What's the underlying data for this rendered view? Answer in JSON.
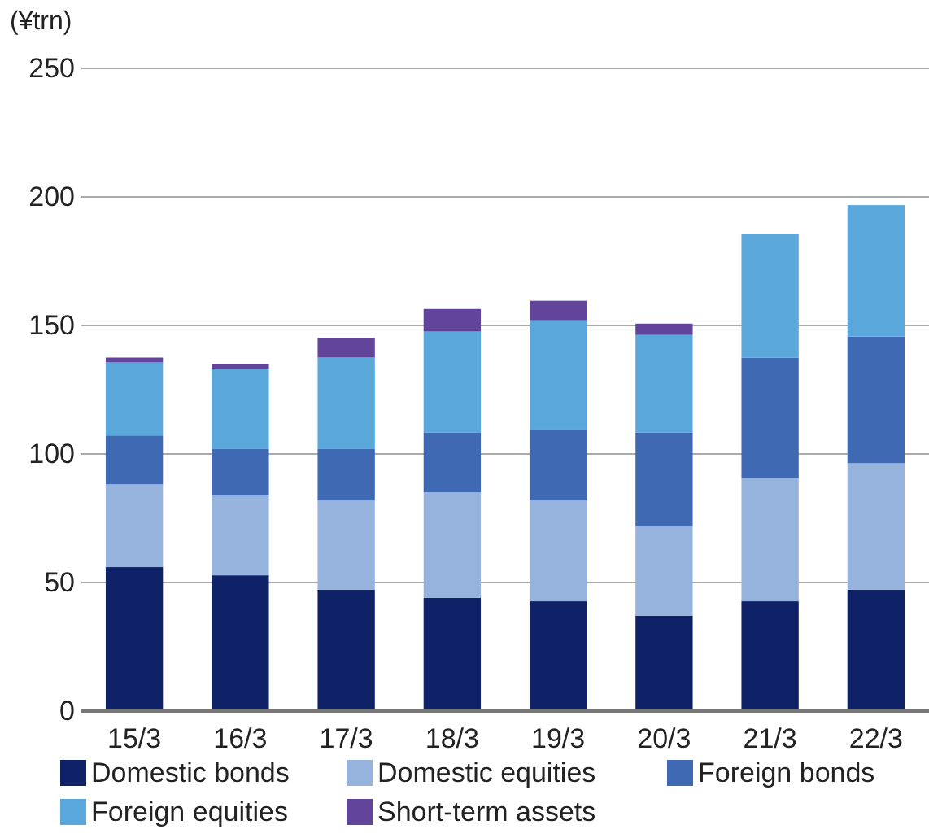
{
  "chart_data": {
    "type": "bar",
    "stacked": true,
    "ylabel": "(¥trn)",
    "categories": [
      "15/3",
      "16/3",
      "17/3",
      "18/3",
      "19/3",
      "20/3",
      "21/3",
      "22/3"
    ],
    "series": [
      {
        "name": "Domestic bonds",
        "color": "#0f2167",
        "values": [
          56,
          52.8,
          47.2,
          44,
          42.7,
          37.1,
          42.7,
          47.2
        ]
      },
      {
        "name": "Domestic equities",
        "color": "#95b3dc",
        "values": [
          32.2,
          31,
          34.7,
          41.1,
          39.2,
          34.7,
          48,
          49.2
        ]
      },
      {
        "name": "Foreign bonds",
        "color": "#3f69b2",
        "values": [
          19,
          18.3,
          20.2,
          23.3,
          27.8,
          36.6,
          46.8,
          49.3
        ]
      },
      {
        "name": "Foreign equities",
        "color": "#5aa7db",
        "values": [
          28.4,
          31,
          35.4,
          39.2,
          42.3,
          37.9,
          48,
          51.1
        ]
      },
      {
        "name": "Short-term assets",
        "color": "#62459b",
        "values": [
          1.9,
          1.8,
          7.6,
          8.8,
          7.6,
          4.4,
          null,
          null
        ]
      }
    ],
    "ylim": [
      0,
      250
    ],
    "yticks": [
      0,
      50,
      100,
      150,
      200,
      250
    ],
    "grid": "y",
    "legend": "bottom"
  }
}
